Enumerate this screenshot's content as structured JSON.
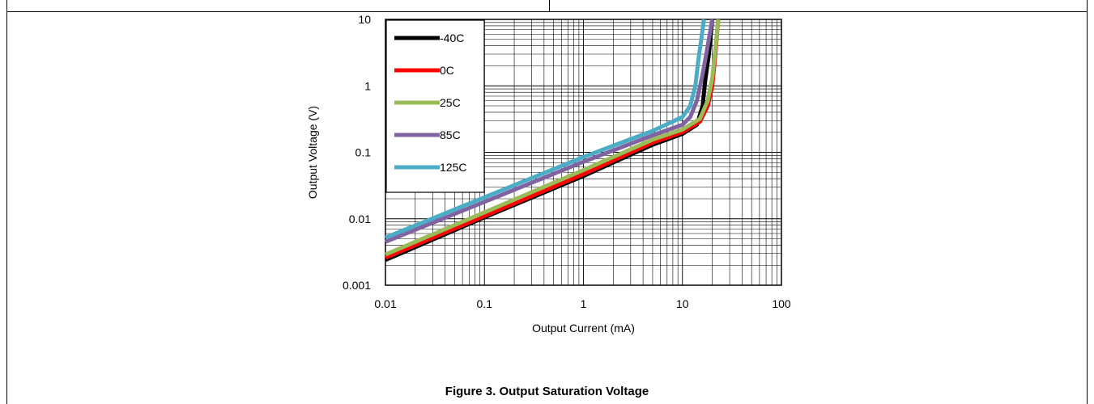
{
  "caption": "Figure 3. Output Saturation Voltage",
  "chart_data": {
    "type": "line",
    "x_scale": "log",
    "y_scale": "log",
    "xlim": [
      0.01,
      100
    ],
    "ylim": [
      0.001,
      10
    ],
    "xlabel": "Output Current (mA)",
    "ylabel": "Output Voltage  (V)",
    "x_ticks": [
      "0.01",
      "0.1",
      "1",
      "10",
      "100"
    ],
    "y_ticks": [
      "0.001",
      "0.01",
      "0.1",
      "1",
      "10"
    ],
    "grid": true,
    "legend_position": "top-left",
    "series": [
      {
        "name": "-40C",
        "color": "#000000",
        "points": [
          [
            0.01,
            0.0024
          ],
          [
            0.1,
            0.0105
          ],
          [
            1,
            0.044
          ],
          [
            5,
            0.13
          ],
          [
            10,
            0.19
          ],
          [
            14,
            0.26
          ],
          [
            16,
            0.5
          ],
          [
            17,
            1.2
          ],
          [
            18.5,
            3
          ],
          [
            20,
            10
          ]
        ]
      },
      {
        "name": "0C",
        "color": "#ff0000",
        "points": [
          [
            0.01,
            0.0026
          ],
          [
            0.1,
            0.011
          ],
          [
            1,
            0.047
          ],
          [
            5,
            0.14
          ],
          [
            10,
            0.2
          ],
          [
            15,
            0.29
          ],
          [
            18,
            0.5
          ],
          [
            20,
            1.0
          ],
          [
            21.5,
            3
          ],
          [
            23,
            10
          ]
        ]
      },
      {
        "name": "25C",
        "color": "#9bbb59",
        "points": [
          [
            0.01,
            0.0029
          ],
          [
            0.1,
            0.0125
          ],
          [
            1,
            0.054
          ],
          [
            5,
            0.155
          ],
          [
            10,
            0.22
          ],
          [
            15,
            0.32
          ],
          [
            18,
            0.6
          ],
          [
            20,
            1.3
          ],
          [
            21.5,
            3.5
          ],
          [
            23,
            10
          ]
        ]
      },
      {
        "name": "85C",
        "color": "#8064a2",
        "points": [
          [
            0.01,
            0.0045
          ],
          [
            0.1,
            0.018
          ],
          [
            1,
            0.072
          ],
          [
            5,
            0.18
          ],
          [
            10,
            0.26
          ],
          [
            12,
            0.34
          ],
          [
            14,
            0.6
          ],
          [
            16,
            1.5
          ],
          [
            18,
            4
          ],
          [
            20,
            10
          ]
        ]
      },
      {
        "name": "125C",
        "color": "#4bacc6",
        "points": [
          [
            0.01,
            0.0052
          ],
          [
            0.1,
            0.021
          ],
          [
            1,
            0.085
          ],
          [
            5,
            0.21
          ],
          [
            10,
            0.34
          ],
          [
            12,
            0.5
          ],
          [
            13.5,
            1.0
          ],
          [
            14.5,
            2.5
          ],
          [
            15.5,
            5
          ],
          [
            16.5,
            10
          ]
        ]
      }
    ]
  }
}
